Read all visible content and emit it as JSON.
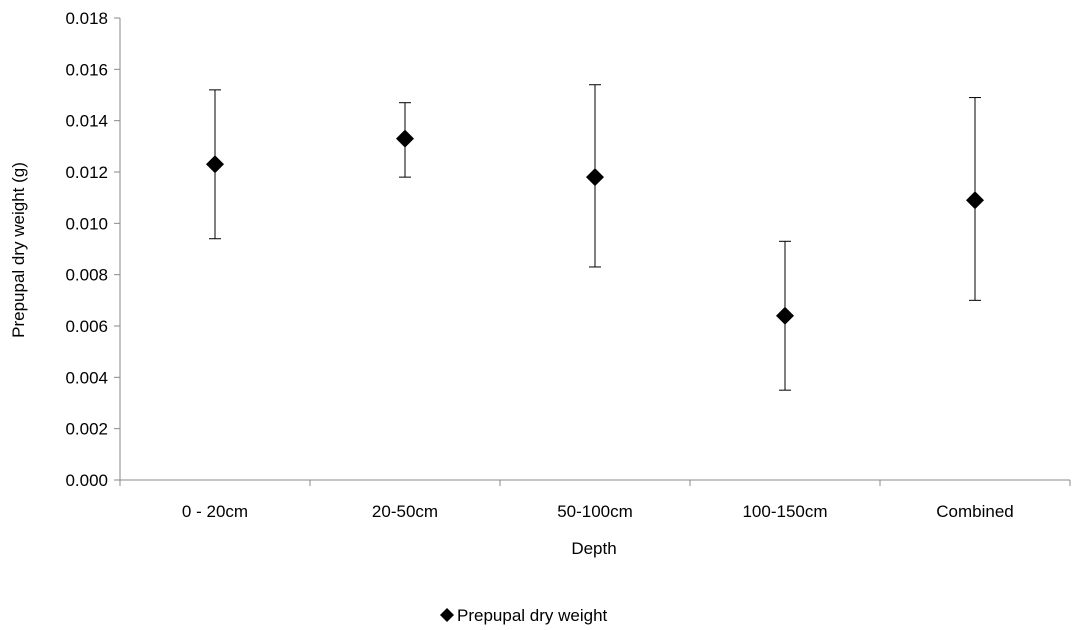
{
  "chart_data": {
    "type": "scatter",
    "title": "",
    "xlabel": "Depth",
    "ylabel": "Prepupal dry weight (g)",
    "categories": [
      "0 - 20cm",
      "20-50cm",
      "50-100cm",
      "100-150cm",
      "Combined"
    ],
    "ylim": [
      0,
      0.018
    ],
    "yticks": [
      "0.000",
      "0.002",
      "0.004",
      "0.006",
      "0.008",
      "0.010",
      "0.012",
      "0.014",
      "0.016",
      "0.018"
    ],
    "ytick_values": [
      0,
      0.002,
      0.004,
      0.006,
      0.008,
      0.01,
      0.012,
      0.014,
      0.016,
      0.018
    ],
    "grid": false,
    "legend_position": "bottom",
    "series": [
      {
        "name": "Prepupal dry weight",
        "marker": "diamond",
        "color": "#000000",
        "values": [
          0.0123,
          0.0133,
          0.0118,
          0.0064,
          0.0109
        ],
        "error_upper": [
          0.0152,
          0.0147,
          0.0154,
          0.0093,
          0.0149
        ],
        "error_lower": [
          0.0094,
          0.0118,
          0.0083,
          0.0035,
          0.007
        ]
      }
    ]
  }
}
